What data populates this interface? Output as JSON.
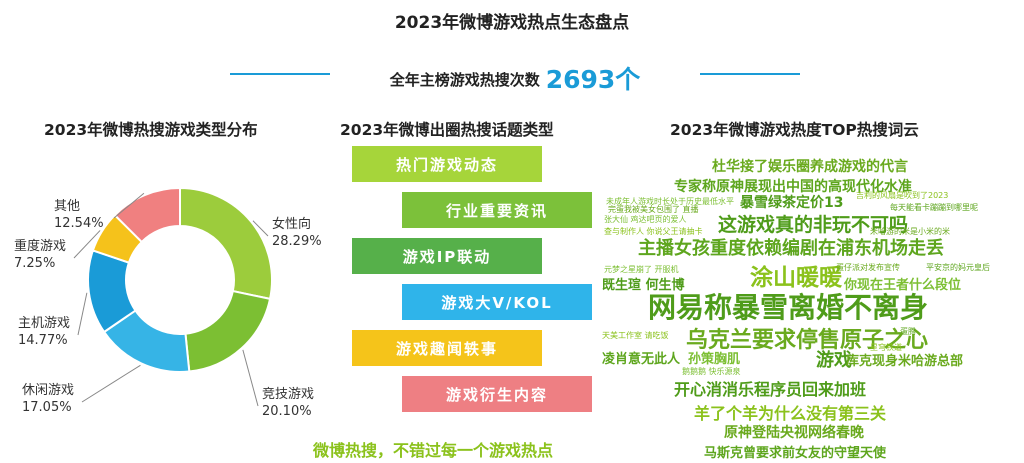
{
  "title": "2023年微博游戏热点生态盘点",
  "subtitle": {
    "label": "全年主榜游戏热搜次数",
    "value": "2693个"
  },
  "sections": {
    "left": "2023年微博热搜游戏类型分布",
    "middle": "2023年微博出圈热搜话题类型",
    "right": "2023年微博游戏热度TOP热搜词云"
  },
  "chart_data": {
    "type": "pie",
    "variant": "donut",
    "title": "2023年微博热搜游戏类型分布",
    "slices": [
      {
        "label": "女性向",
        "value": 28.29,
        "display": "28.29%",
        "color": "#9ccc3c"
      },
      {
        "label": "竞技游戏",
        "value": 20.1,
        "display": "20.10%",
        "color": "#7cbf33"
      },
      {
        "label": "休闲游戏",
        "value": 17.05,
        "display": "17.05%",
        "color": "#36b4e6"
      },
      {
        "label": "主机游戏",
        "value": 14.77,
        "display": "14.77%",
        "color": "#1a9bd7"
      },
      {
        "label": "重度游戏",
        "value": 7.25,
        "display": "7.25%",
        "color": "#f5c21b"
      },
      {
        "label": "其他",
        "value": 12.54,
        "display": "12.54%",
        "color": "#f08080"
      }
    ]
  },
  "topic_types": [
    {
      "label": "热门游戏动态",
      "color": "#a6d53a"
    },
    {
      "label": "行业重要资讯",
      "color": "#7cc13a"
    },
    {
      "label": "游戏IP联动",
      "color": "#56b04a"
    },
    {
      "label": "游戏大V/KOL",
      "color": "#2fb4ea"
    },
    {
      "label": "游戏趣闻轶事",
      "color": "#f5c41a"
    },
    {
      "label": "游戏衍生内容",
      "color": "#ee7f83"
    }
  ],
  "slogan": "微博热搜，不错过每一个游戏热点",
  "word_cloud": [
    "杜华接了娱乐圈养成游戏的代言",
    "专家称原神展现出中国的高现代化水准",
    "未成年人游戏时长处于历史最低水平",
    "暴雪绿茶定价13",
    "吉利的风扇是吹到了2023",
    "完蛋我被美女包围了 直播",
    "每天能看卡蹦蹦到哪里呢",
    "张大仙 鸡达吧页的爱人",
    "这游戏真的非玩不可吗",
    "查与制作人 你说父王请抽卡",
    "米哈游的米是小米的米",
    "主播女孩重度依赖编剧在浦东机场走丢",
    "元梦之星崩了 开服机",
    "既生瑄 何生博",
    "涂山暖暖",
    "蛋仔派对发布宣传",
    "平安京的妈元皇后",
    "你现在王者什么段位",
    "网易称暴雪离婚不离身",
    "天美工作室 请吃饭",
    "乌克兰要求停售原子之心",
    "凌肖意无此人",
    "孙策胸肌",
    "游戏",
    "星穹铁道",
    "库克现身米哈游总部",
    "蛋腾",
    "鹅鹅鹅 快乐源泉",
    "开心消消乐程序员回来加班",
    "羊了个羊为什么没有第三关",
    "原神登陆央视网络春晚",
    "马斯克曾要求前女友的守望天使"
  ]
}
